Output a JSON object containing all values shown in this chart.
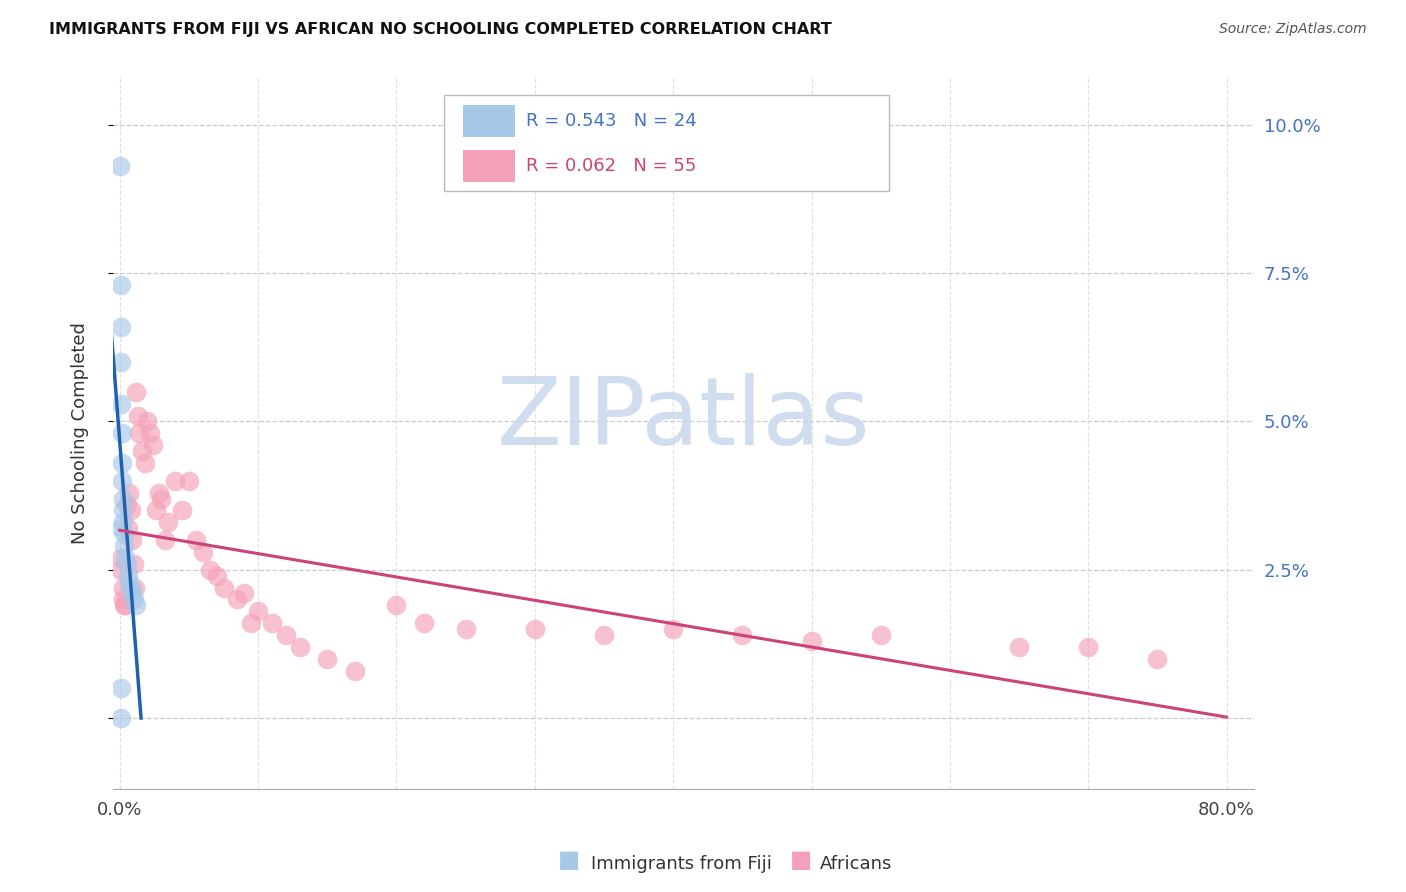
{
  "title": "IMMIGRANTS FROM FIJI VS AFRICAN NO SCHOOLING COMPLETED CORRELATION CHART",
  "source": "Source: ZipAtlas.com",
  "ylabel": "No Schooling Completed",
  "R1": 0.543,
  "N1": 24,
  "R2": 0.062,
  "N2": 55,
  "color1": "#a8c8e8",
  "color2": "#f4a0b8",
  "line_color1": "#2060b0",
  "line_color2": "#cc4477",
  "label1": "Immigrants from Fiji",
  "label2": "Africans",
  "fiji_x": [
    0.0005,
    0.001,
    0.001,
    0.001,
    0.001,
    0.0013,
    0.0015,
    0.0018,
    0.002,
    0.002,
    0.002,
    0.003,
    0.003,
    0.004,
    0.005,
    0.006,
    0.007,
    0.008,
    0.009,
    0.01,
    0.012,
    0.0008,
    0.001,
    0.001
  ],
  "fiji_y": [
    0.093,
    0.073,
    0.066,
    0.06,
    0.053,
    0.048,
    0.043,
    0.04,
    0.037,
    0.035,
    0.033,
    0.031,
    0.029,
    0.027,
    0.026,
    0.024,
    0.023,
    0.022,
    0.021,
    0.02,
    0.019,
    0.005,
    0.0,
    0.032
  ],
  "africa_x": [
    0.001,
    0.001,
    0.002,
    0.002,
    0.003,
    0.004,
    0.005,
    0.006,
    0.007,
    0.008,
    0.009,
    0.01,
    0.011,
    0.012,
    0.013,
    0.014,
    0.016,
    0.018,
    0.02,
    0.022,
    0.024,
    0.026,
    0.028,
    0.03,
    0.033,
    0.035,
    0.04,
    0.045,
    0.05,
    0.055,
    0.06,
    0.065,
    0.07,
    0.075,
    0.085,
    0.09,
    0.095,
    0.1,
    0.11,
    0.12,
    0.13,
    0.15,
    0.17,
    0.2,
    0.22,
    0.25,
    0.3,
    0.35,
    0.4,
    0.45,
    0.5,
    0.55,
    0.65,
    0.7,
    0.75
  ],
  "africa_y": [
    0.027,
    0.025,
    0.022,
    0.02,
    0.019,
    0.019,
    0.036,
    0.032,
    0.038,
    0.035,
    0.03,
    0.026,
    0.022,
    0.055,
    0.051,
    0.048,
    0.045,
    0.043,
    0.05,
    0.048,
    0.046,
    0.035,
    0.038,
    0.037,
    0.03,
    0.033,
    0.04,
    0.035,
    0.04,
    0.03,
    0.028,
    0.025,
    0.024,
    0.022,
    0.02,
    0.021,
    0.016,
    0.018,
    0.016,
    0.014,
    0.012,
    0.01,
    0.008,
    0.019,
    0.016,
    0.015,
    0.015,
    0.014,
    0.015,
    0.014,
    0.013,
    0.014,
    0.012,
    0.012,
    0.01
  ],
  "xlim_min": -0.005,
  "xlim_max": 0.82,
  "ylim_min": -0.012,
  "ylim_max": 0.108,
  "yticks": [
    0.0,
    0.025,
    0.05,
    0.075,
    0.1
  ],
  "xticks": [
    0.0,
    0.1,
    0.2,
    0.3,
    0.4,
    0.5,
    0.6,
    0.7,
    0.8
  ],
  "right_tick_labels": [
    "",
    "2.5%",
    "5.0%",
    "7.5%",
    "10.0%"
  ],
  "watermark_text": "ZIPatlas",
  "watermark_color": "#c8d8ec",
  "background_color": "#ffffff",
  "grid_color": "#cccccc",
  "marker_size": 200,
  "marker_alpha": 0.65
}
